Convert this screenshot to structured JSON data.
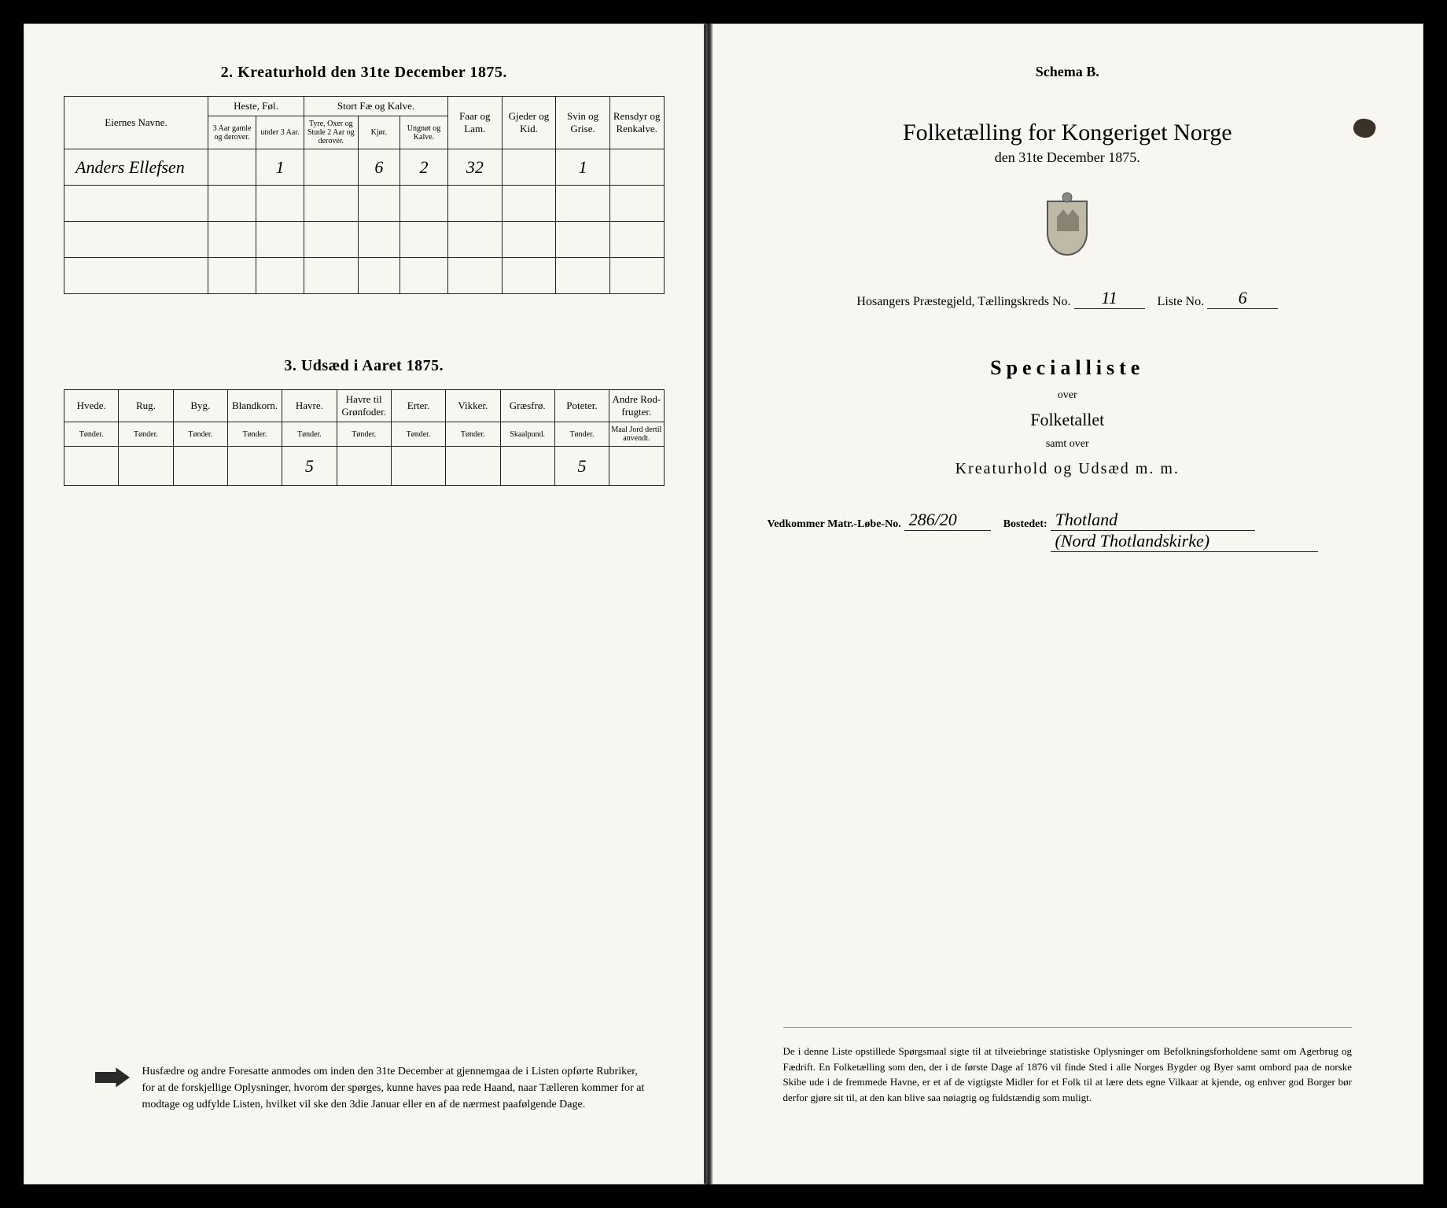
{
  "left": {
    "section2": {
      "title": "2.  Kreaturhold den 31te December 1875.",
      "columns": {
        "owner": "Eiernes Navne.",
        "horse": "Heste, Føl.",
        "horse_sub": [
          "3 Aar gamle og derover.",
          "under 3 Aar."
        ],
        "cattle": "Stort Fæ og Kalve.",
        "cattle_sub": [
          "Tyre, Oxer og Stude 2 Aar og derover.",
          "Kjør.",
          "Ungnøt og Kalve."
        ],
        "sheep": "Faar og Lam.",
        "goat": "Gjeder og Kid.",
        "pig": "Svin og Grise.",
        "reindeer": "Rensdyr og Renkalve."
      },
      "rows": [
        {
          "owner": "Anders Ellefsen",
          "h1": "",
          "h2": "1",
          "c1": "",
          "c2": "6",
          "c3": "2",
          "sheep": "32",
          "goat": "",
          "pig": "1",
          "rein": ""
        },
        {
          "owner": "",
          "h1": "",
          "h2": "",
          "c1": "",
          "c2": "",
          "c3": "",
          "sheep": "",
          "goat": "",
          "pig": "",
          "rein": ""
        },
        {
          "owner": "",
          "h1": "",
          "h2": "",
          "c1": "",
          "c2": "",
          "c3": "",
          "sheep": "",
          "goat": "",
          "pig": "",
          "rein": ""
        },
        {
          "owner": "",
          "h1": "",
          "h2": "",
          "c1": "",
          "c2": "",
          "c3": "",
          "sheep": "",
          "goat": "",
          "pig": "",
          "rein": ""
        }
      ]
    },
    "section3": {
      "title": "3.  Udsæd i Aaret 1875.",
      "columns": [
        "Hvede.",
        "Rug.",
        "Byg.",
        "Blandkorn.",
        "Havre.",
        "Havre til Grønfoder.",
        "Erter.",
        "Vikker.",
        "Græsfrø.",
        "Poteter.",
        "Andre Rod-frugter."
      ],
      "unit": "Tønder.",
      "unit_alt": "Skaalpund.",
      "unit_last": "Maal Jord dertil anvendt.",
      "row": [
        "",
        "",
        "",
        "",
        "5",
        "",
        "",
        "",
        "",
        "5",
        ""
      ]
    },
    "footer": "Husfædre og andre Foresatte anmodes om inden den 31te December at gjennemgaa de i Listen opførte Rubriker, for at de forskjellige Oplysninger, hvorom der spørges, kunne haves paa rede Haand, naar Tælleren kommer for at modtage og udfylde Listen, hvilket vil ske den 3die Januar eller en af de nærmest paafølgende Dage."
  },
  "right": {
    "schema": "Schema B.",
    "title": "Folketælling for Kongeriget Norge",
    "subtitle": "den 31te December 1875.",
    "parish_line": {
      "prefix": "Hosangers Præstegjeld, Tællingskreds No.",
      "kreds": "11",
      "liste_label": "Liste No.",
      "liste": "6"
    },
    "special": "Specialliste",
    "over": "over",
    "folketallet": "Folketallet",
    "samt": "samt over",
    "kreatur": "Kreaturhold og Udsæd m. m.",
    "vedk": {
      "label": "Vedkommer Matr.-Løbe-No.",
      "matr": "286/20",
      "bosted_label": "Bostedet:",
      "bosted": "Thotland",
      "bosted2": "(Nord Thotlandskirke)"
    },
    "footer": "De i denne Liste opstillede Spørgsmaal sigte til at tilveiebringe statistiske Oplysninger om Befolkningsforholdene samt om Agerbrug og Fædrift.  En Folketælling som den, der i de første Dage af 1876 vil finde Sted i alle Norges Bygder og Byer samt ombord paa de norske Skibe ude i de fremmede Havne, er et af de vigtigste Midler for et Folk til at lære dets egne Vilkaar at kjende, og enhver god Borger bør derfor gjøre sit til, at den kan blive saa nøiagtig og fuldstændig som muligt."
  },
  "colors": {
    "paper": "#f8f6f0",
    "ink": "#1a1a1a",
    "border": "#222222"
  }
}
